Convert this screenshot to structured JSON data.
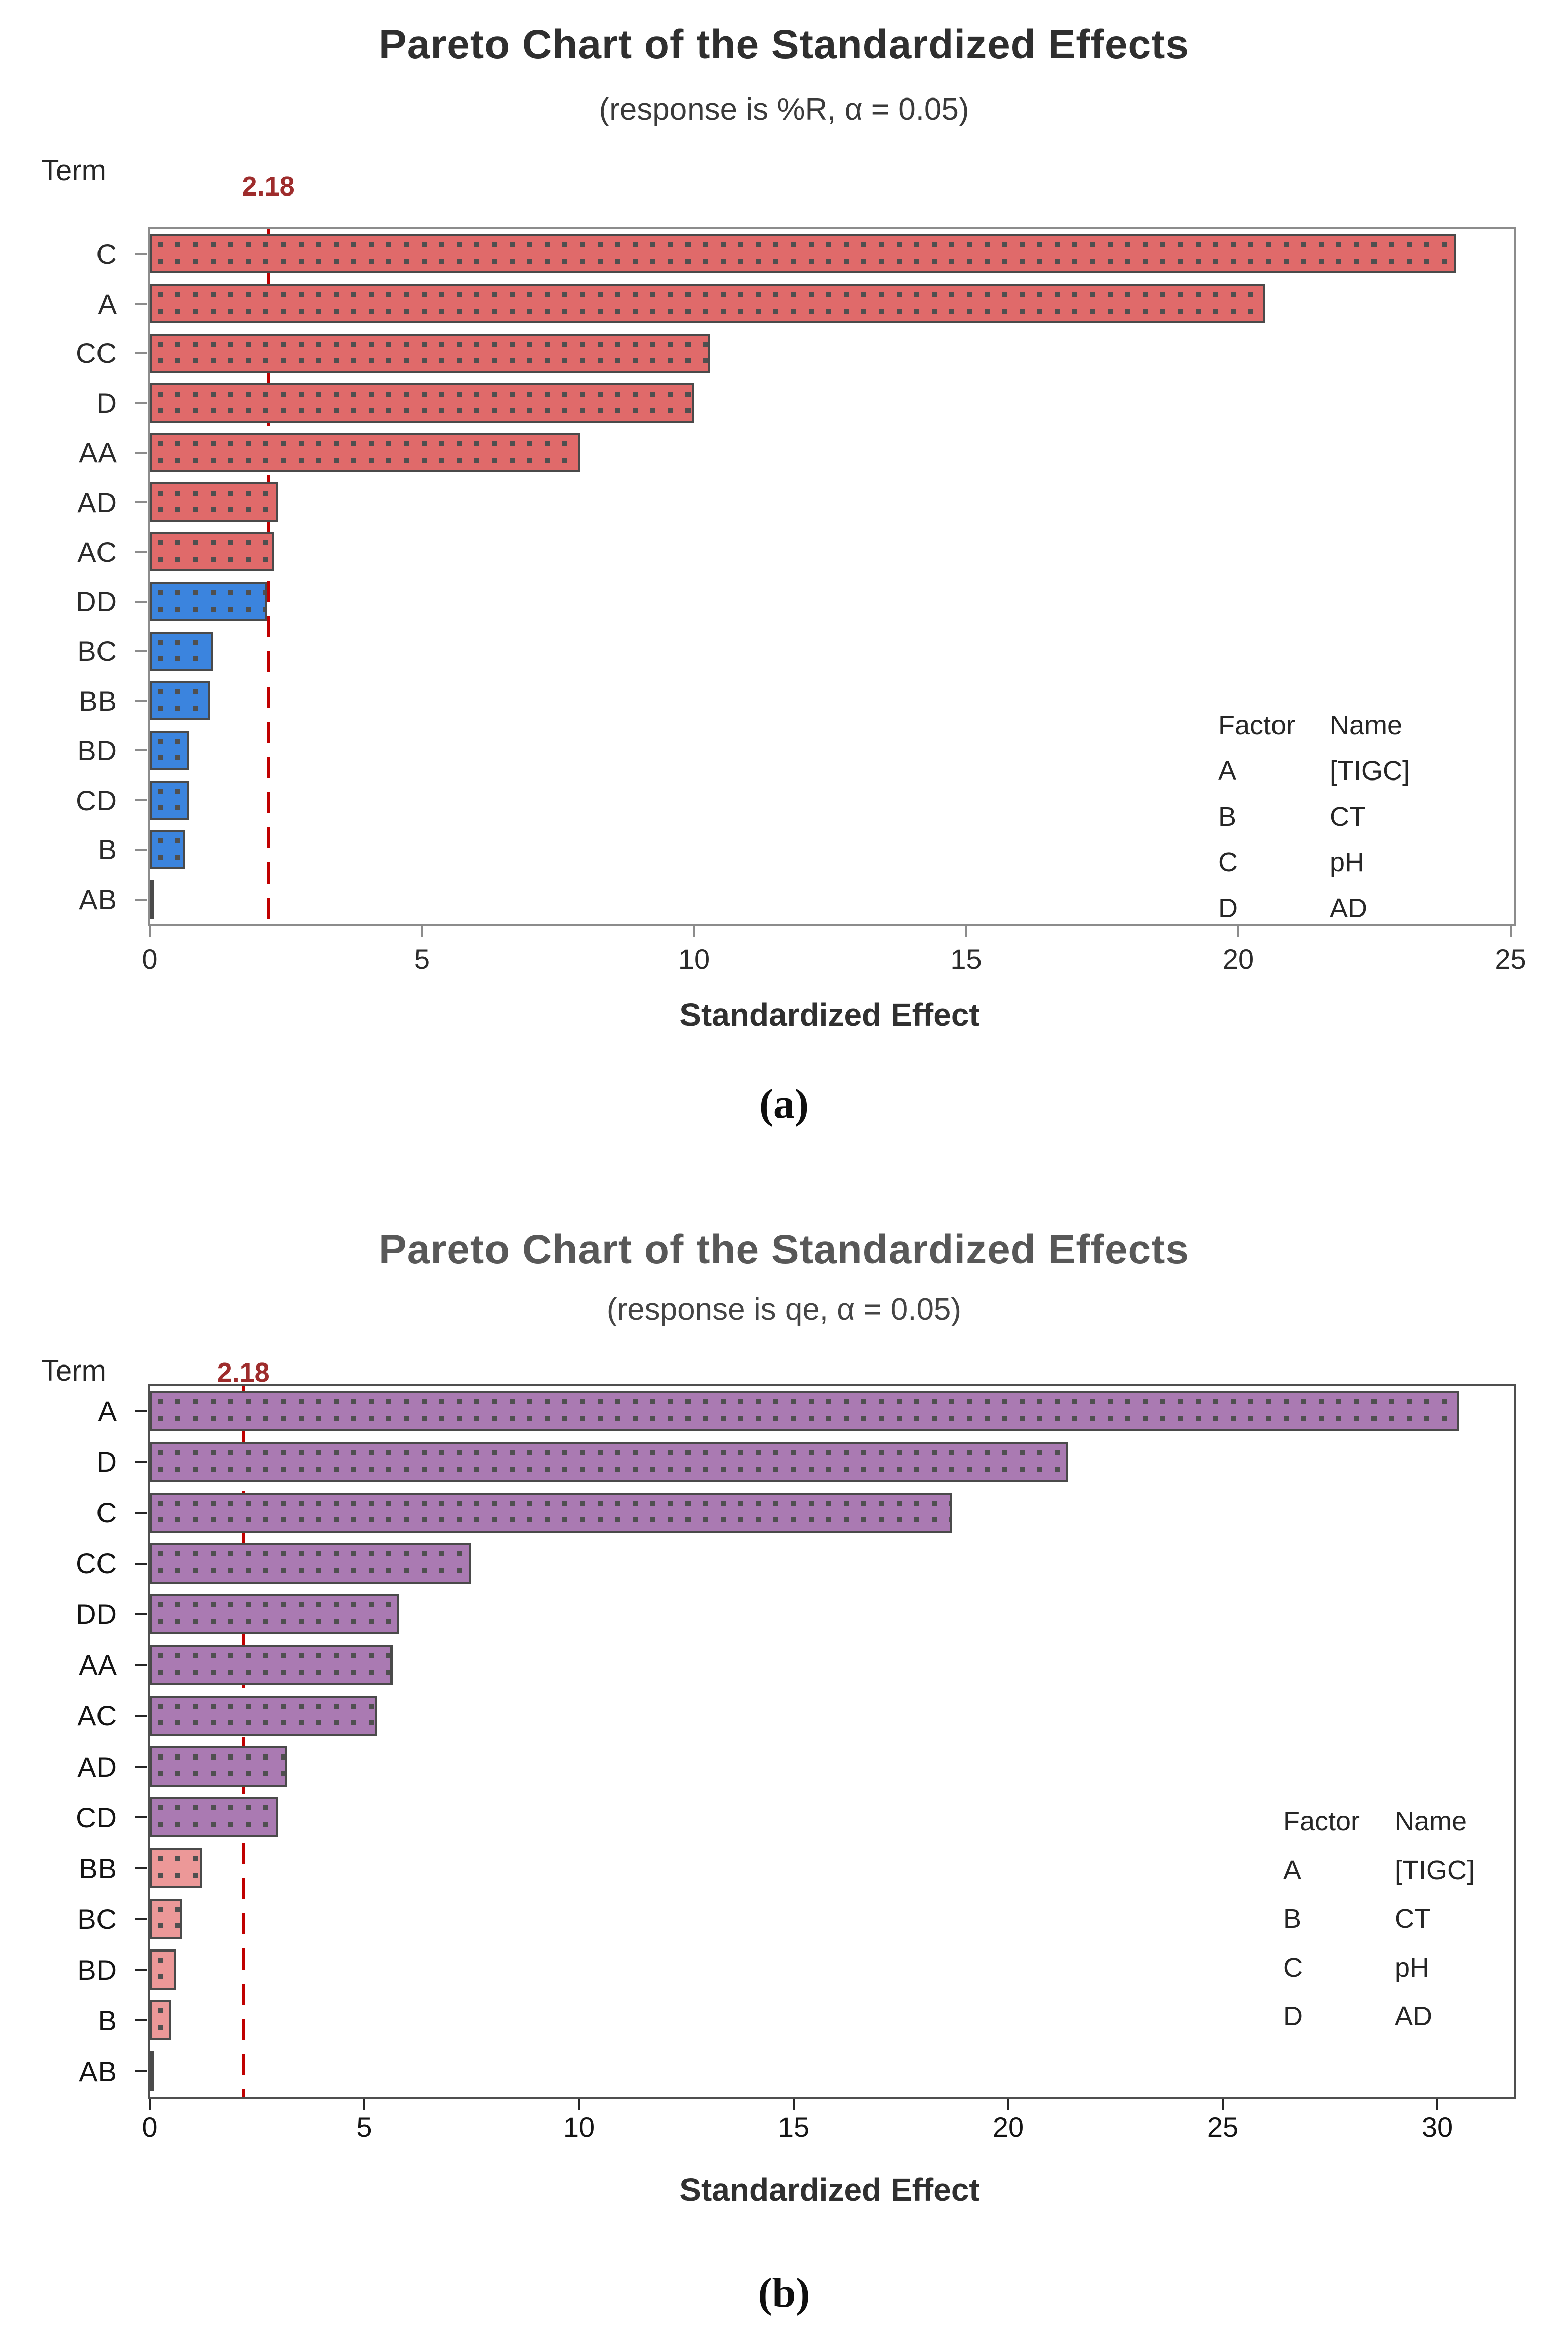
{
  "figure": {
    "captions": [
      "(a)",
      "(b)"
    ]
  },
  "chart_data": [
    {
      "type": "bar",
      "orientation": "horizontal",
      "title": "Pareto Chart of the Standardized Effects",
      "subtitle": "(response is %R, α = 0.05)",
      "ylabel": "Term",
      "xlabel": "Standardized Effect",
      "categories": [
        "C",
        "A",
        "CC",
        "D",
        "AA",
        "AD",
        "AC",
        "DD",
        "BC",
        "BB",
        "BD",
        "CD",
        "B",
        "AB"
      ],
      "values": [
        24.0,
        20.5,
        10.3,
        10.0,
        7.9,
        2.35,
        2.28,
        2.15,
        1.15,
        1.1,
        0.73,
        0.72,
        0.65,
        0.05
      ],
      "significant": [
        true,
        true,
        true,
        true,
        true,
        true,
        true,
        false,
        false,
        false,
        false,
        false,
        false,
        false
      ],
      "reference_line": {
        "value": 2.18,
        "label": "2.18",
        "color": "#c00000",
        "label_color": "#9e2c2c"
      },
      "x_ticks": [
        0,
        5,
        10,
        15,
        20,
        25
      ],
      "xlim": [
        0,
        25.06
      ],
      "grid": false,
      "legend_position": "bottom-right-inside",
      "colors": {
        "significant": "#e06a6a",
        "not_significant": "#3b84de",
        "bar_border": "#4a4a4a",
        "dot_pattern": "#4f4f4f"
      },
      "legend": {
        "headers": [
          "Factor",
          "Name"
        ],
        "rows": [
          [
            "A",
            "[TIGC]"
          ],
          [
            "B",
            "CT"
          ],
          [
            "C",
            "pH"
          ],
          [
            "D",
            "AD"
          ]
        ]
      }
    },
    {
      "type": "bar",
      "orientation": "horizontal",
      "title": "Pareto Chart of the Standardized Effects",
      "subtitle": "(response is qe, α = 0.05)",
      "ylabel": "Term",
      "xlabel": "Standardized Effect",
      "categories": [
        "A",
        "D",
        "C",
        "CC",
        "DD",
        "AA",
        "AC",
        "AD",
        "CD",
        "BB",
        "BC",
        "BD",
        "B",
        "AB"
      ],
      "values": [
        30.5,
        21.4,
        18.7,
        7.5,
        5.8,
        5.65,
        5.3,
        3.2,
        3.0,
        1.22,
        0.76,
        0.61,
        0.5,
        0.04
      ],
      "significant": [
        true,
        true,
        true,
        true,
        true,
        true,
        true,
        true,
        true,
        false,
        false,
        false,
        false,
        false
      ],
      "reference_line": {
        "value": 2.18,
        "label": "2.18",
        "color": "#c00000",
        "label_color": "#9e2c2c"
      },
      "x_ticks": [
        0,
        5,
        10,
        15,
        20,
        25,
        30
      ],
      "xlim": [
        0,
        31.78
      ],
      "grid": false,
      "legend_position": "bottom-right-inside",
      "colors": {
        "significant": "#aa7ab2",
        "not_significant": "#ec9898",
        "bar_border": "#4a4a4a",
        "dot_pattern": "#4f4f4f"
      },
      "legend": {
        "headers": [
          "Factor",
          "Name"
        ],
        "rows": [
          [
            "A",
            "[TIGC]"
          ],
          [
            "B",
            "CT"
          ],
          [
            "C",
            "pH"
          ],
          [
            "D",
            "AD"
          ]
        ]
      }
    }
  ]
}
